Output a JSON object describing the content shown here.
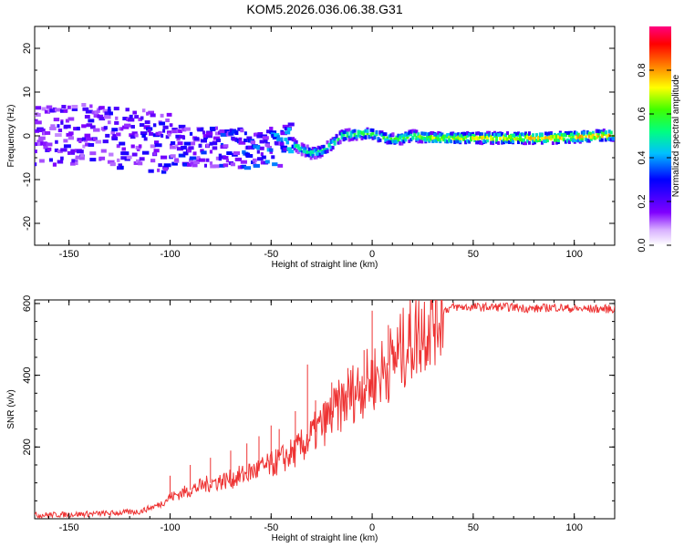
{
  "figure": {
    "title": "KOM5.2026.036.06.38.G31"
  },
  "colorbar": {
    "label": "Normalized spectral amplitude",
    "range": [
      0,
      1
    ],
    "ticks": [
      "0.0",
      "0.2",
      "0.4",
      "0.6",
      "0.8"
    ],
    "colors": [
      "#ffffff",
      "#c080ff",
      "#8000ff",
      "#0000ff",
      "#00c0ff",
      "#00ff80",
      "#40ff00",
      "#ffff00",
      "#ff8000",
      "#ff0000",
      "#ff0080"
    ]
  },
  "chart_data": [
    {
      "type": "heatmap",
      "title": "KOM5.2026.036.06.38.G31",
      "xlabel": "Height of straight line (km)",
      "ylabel": "Frequency (Hz)",
      "xlim": [
        -167,
        120
      ],
      "ylim": [
        -25,
        25
      ],
      "xticks": [
        -150,
        -100,
        -50,
        0,
        50,
        100
      ],
      "xtick_labels": [
        "-150",
        "-100",
        "-50",
        "0",
        "50",
        "100"
      ],
      "yticks": [
        -20,
        -10,
        0,
        10,
        20
      ],
      "ytick_labels": [
        "-20",
        "-10",
        "0",
        "10",
        "20"
      ],
      "ridge": {
        "x": [
          -167,
          -130,
          -100,
          -60,
          -45,
          -40,
          -35,
          -30,
          -25,
          -20,
          -15,
          -10,
          -5,
          0,
          5,
          10,
          15,
          20,
          30,
          60,
          90,
          120
        ],
        "freq": [
          0.5,
          0,
          -2,
          -3,
          -2.5,
          -1.5,
          -3,
          -4,
          -3.5,
          -2,
          0,
          0.3,
          0.5,
          0.5,
          -0.3,
          -0.8,
          -0.6,
          0,
          -0.5,
          -0.5,
          -0.5,
          0.2
        ],
        "amplitude": [
          0.25,
          0.28,
          0.3,
          0.35,
          0.4,
          0.5,
          0.55,
          0.55,
          0.55,
          0.6,
          0.6,
          0.6,
          0.62,
          0.62,
          0.6,
          0.6,
          0.62,
          0.65,
          0.7,
          0.75,
          0.8,
          0.8
        ]
      }
    },
    {
      "type": "line",
      "xlabel": "Height of straight line (km)",
      "ylabel": "SNR (v/v)",
      "xlim": [
        -167,
        120
      ],
      "ylim": [
        0,
        610
      ],
      "xticks": [
        -150,
        -100,
        -50,
        0,
        50,
        100
      ],
      "xtick_labels": [
        "-150",
        "-100",
        "-50",
        "0",
        "50",
        "100"
      ],
      "yticks": [
        200,
        400,
        600
      ],
      "ytick_labels": [
        "200",
        "400",
        "600"
      ],
      "color": "#ee3333",
      "series": [
        {
          "name": "SNR",
          "x": [
            -167,
            -150,
            -130,
            -115,
            -105,
            -100,
            -90,
            -80,
            -70,
            -60,
            -50,
            -40,
            -35,
            -30,
            -25,
            -20,
            -15,
            -10,
            -5,
            0,
            5,
            10,
            15,
            20,
            25,
            30,
            35,
            40,
            50,
            60,
            70,
            80,
            90,
            100,
            110,
            120
          ],
          "y": [
            10,
            12,
            15,
            20,
            40,
            60,
            80,
            100,
            110,
            130,
            150,
            180,
            200,
            230,
            260,
            290,
            320,
            350,
            370,
            390,
            410,
            440,
            470,
            500,
            530,
            560,
            580,
            590,
            590,
            590,
            590,
            585,
            590,
            585,
            585,
            585
          ]
        }
      ],
      "spikes": {
        "x": [
          -100,
          -90,
          -80,
          -70,
          -62,
          -56,
          -50,
          -46,
          -38,
          -32,
          -28,
          -20,
          -12,
          -4,
          0,
          8
        ],
        "y": [
          120,
          150,
          170,
          190,
          210,
          230,
          260,
          250,
          300,
          430,
          330,
          380,
          420,
          470,
          580,
          540
        ]
      }
    }
  ]
}
